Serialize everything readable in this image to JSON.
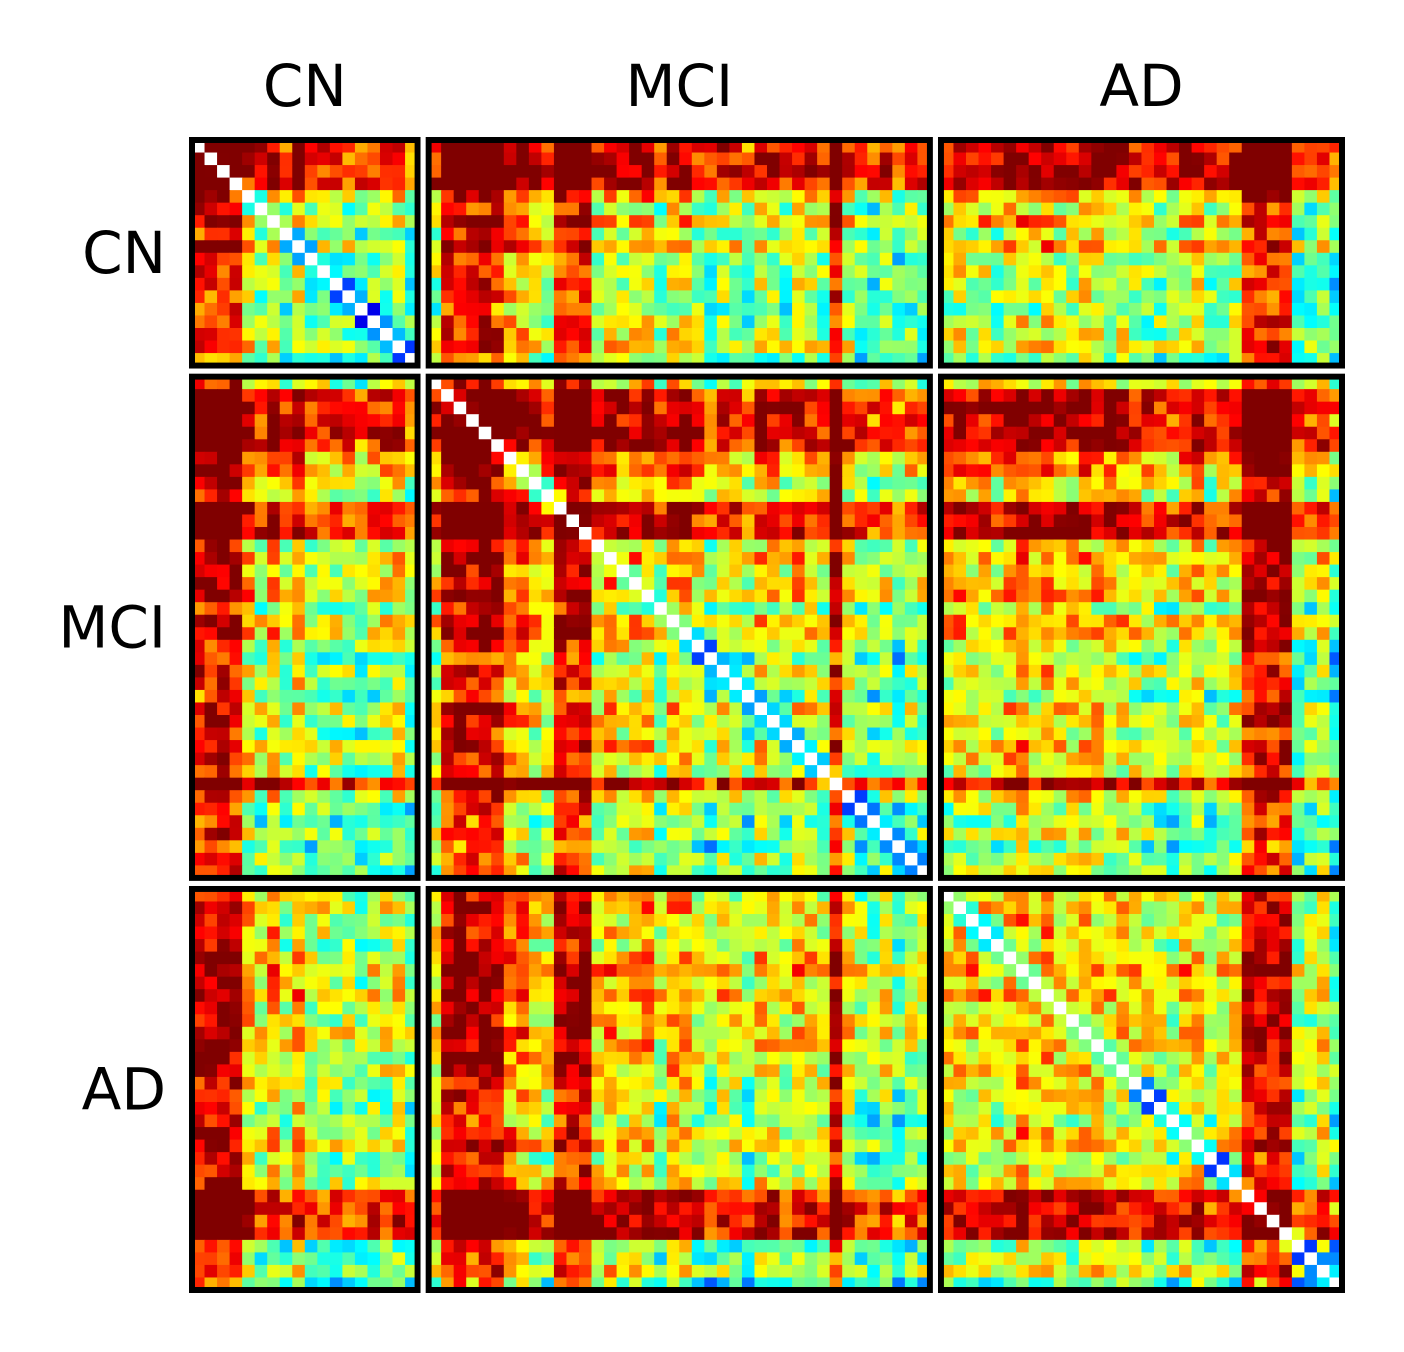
{
  "chart_data": {
    "type": "heatmap",
    "title": "",
    "xlabel": "",
    "ylabel": "",
    "groups": [
      {
        "name": "CN",
        "size": 18
      },
      {
        "name": "MCI",
        "size": 40
      },
      {
        "name": "AD",
        "size": 32
      }
    ],
    "colormap": "jet",
    "diagonal": "white",
    "group_separators": "white",
    "border_color": "#000000",
    "palette": [
      "#00007f",
      "#0000ff",
      "#0066ff",
      "#00e5ff",
      "#14ffe3",
      "#7dff7a",
      "#e6ff12",
      "#ffe600",
      "#ff9900",
      "#ff2200",
      "#7f0000"
    ]
  }
}
